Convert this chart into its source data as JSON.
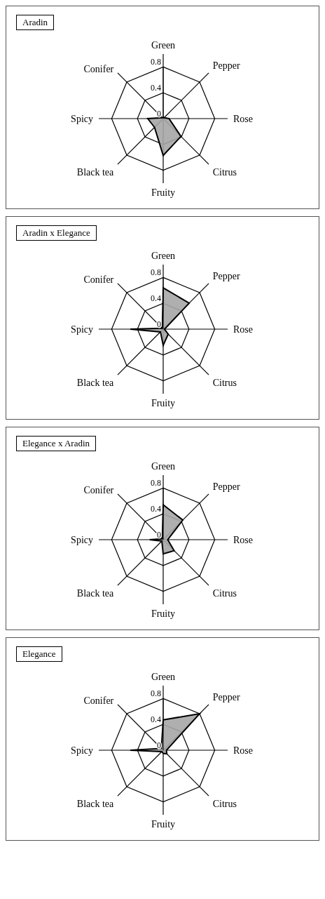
{
  "chart_data": [
    {
      "type": "radar",
      "title": "Aradin",
      "categories": [
        "Green",
        "Pepper",
        "Rose",
        "Citrus",
        "Fruity",
        "Black tea",
        "Spicy",
        "Conifer"
      ],
      "ylim": [
        0,
        0.8
      ],
      "yticks": [
        0,
        0.4,
        0.8
      ],
      "grid": true,
      "series": [
        {
          "color": "#a6a6a6",
          "values": [
            0.02,
            0.02,
            0.09,
            0.39,
            0.57,
            0.19,
            0.24,
            0.02
          ]
        }
      ]
    },
    {
      "type": "radar",
      "title": "Aradin x Elegance",
      "categories": [
        "Green",
        "Pepper",
        "Rose",
        "Citrus",
        "Fruity",
        "Black tea",
        "Spicy",
        "Conifer"
      ],
      "ylim": [
        0,
        0.8
      ],
      "yticks": [
        0,
        0.4,
        0.8
      ],
      "grid": true,
      "series": [
        {
          "color": "#a6a6a6",
          "values": [
            0.64,
            0.57,
            0.02,
            0.11,
            0.25,
            0.06,
            0.51,
            0.02
          ]
        }
      ]
    },
    {
      "type": "radar",
      "title": "Elegance x Aradin",
      "categories": [
        "Green",
        "Pepper",
        "Rose",
        "Citrus",
        "Fruity",
        "Black tea",
        "Spicy",
        "Conifer"
      ],
      "ylim": [
        0,
        0.8
      ],
      "yticks": [
        0,
        0.4,
        0.8
      ],
      "grid": true,
      "series": [
        {
          "color": "#a6a6a6",
          "values": [
            0.54,
            0.43,
            0.07,
            0.24,
            0.22,
            0.03,
            0.21,
            0.02
          ]
        }
      ]
    },
    {
      "type": "radar",
      "title": "Elegance",
      "categories": [
        "Green",
        "Pepper",
        "Rose",
        "Citrus",
        "Fruity",
        "Black tea",
        "Spicy",
        "Conifer"
      ],
      "ylim": [
        0,
        0.8
      ],
      "yticks": [
        0,
        0.4,
        0.8
      ],
      "grid": true,
      "series": [
        {
          "color": "#a6a6a6",
          "values": [
            0.47,
            0.8,
            0.05,
            0.08,
            0.05,
            0.03,
            0.51,
            0.04
          ]
        }
      ]
    }
  ]
}
